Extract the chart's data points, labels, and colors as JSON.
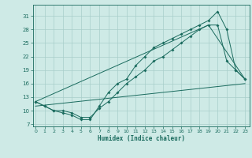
{
  "title": "",
  "xlabel": "Humidex (Indice chaleur)",
  "background_color": "#ceeae6",
  "grid_color": "#a8ceca",
  "line_color": "#1a6b5e",
  "x_ticks": [
    0,
    1,
    2,
    3,
    4,
    5,
    6,
    7,
    8,
    9,
    10,
    11,
    12,
    13,
    14,
    15,
    16,
    17,
    18,
    19,
    20,
    21,
    22,
    23
  ],
  "y_ticks": [
    7,
    10,
    13,
    16,
    19,
    22,
    25,
    28,
    31
  ],
  "xlim": [
    -0.3,
    23.5
  ],
  "ylim": [
    6.5,
    33.5
  ],
  "series1_x": [
    0,
    1,
    2,
    3,
    4,
    5,
    6,
    7,
    8,
    9,
    10,
    11,
    12,
    13,
    14,
    15,
    16,
    17,
    18,
    19,
    20,
    21,
    22,
    23
  ],
  "series1_y": [
    12,
    11,
    10,
    9.5,
    9,
    8,
    8,
    11,
    14,
    16,
    17,
    20,
    22,
    24,
    25,
    26,
    27,
    28,
    29,
    30,
    32,
    28,
    19,
    17
  ],
  "series2_x": [
    0,
    1,
    2,
    3,
    4,
    5,
    6,
    7,
    8,
    9,
    10,
    11,
    12,
    13,
    14,
    15,
    16,
    17,
    18,
    19,
    20,
    21,
    22,
    23
  ],
  "series2_y": [
    12,
    11,
    10,
    10,
    9.5,
    8.5,
    8.5,
    10.5,
    12,
    14,
    16,
    17.5,
    19,
    21,
    22,
    23.5,
    25,
    26.5,
    28,
    29,
    29,
    21,
    19,
    17
  ],
  "series3_x": [
    0,
    19,
    23
  ],
  "series3_y": [
    12,
    29,
    17
  ],
  "series4_x": [
    0,
    23
  ],
  "series4_y": [
    11,
    16
  ]
}
